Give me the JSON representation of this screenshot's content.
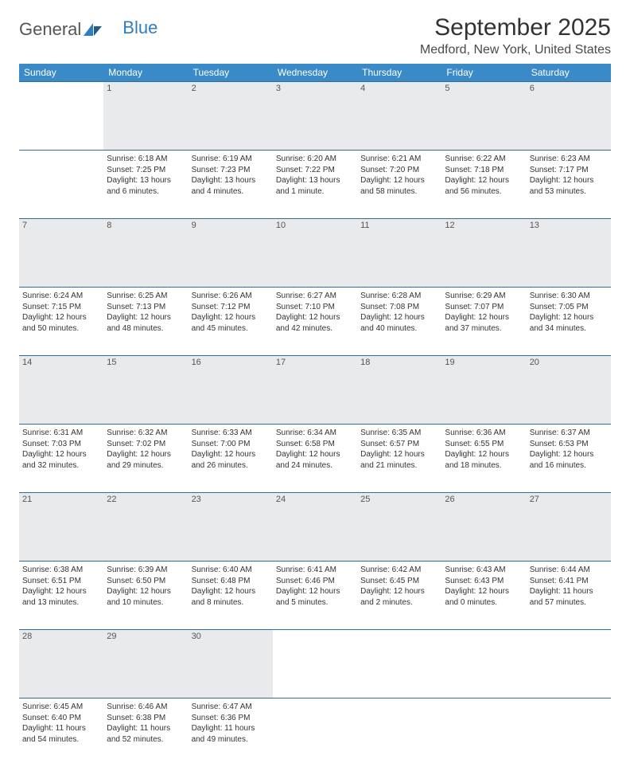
{
  "logo": {
    "text1": "General",
    "text2": "Blue"
  },
  "title": "September 2025",
  "location": "Medford, New York, United States",
  "colors": {
    "header_bg": "#3a8ac8",
    "header_text": "#ffffff",
    "daynum_bg": "#e9eaeb",
    "border": "#2c6ea3",
    "body_text": "#333333",
    "logo_gray": "#555555",
    "logo_blue": "#2f7ec0"
  },
  "typography": {
    "title_fontsize": 30,
    "location_fontsize": 16,
    "header_fontsize": 12,
    "daynum_fontsize": 11,
    "cell_fontsize": 10
  },
  "weekdays": [
    "Sunday",
    "Monday",
    "Tuesday",
    "Wednesday",
    "Thursday",
    "Friday",
    "Saturday"
  ],
  "weeks": [
    {
      "nums": [
        "",
        "1",
        "2",
        "3",
        "4",
        "5",
        "6"
      ],
      "cells": [
        {
          "empty": true
        },
        {
          "sunrise": "Sunrise: 6:18 AM",
          "sunset": "Sunset: 7:25 PM",
          "day1": "Daylight: 13 hours",
          "day2": "and 6 minutes."
        },
        {
          "sunrise": "Sunrise: 6:19 AM",
          "sunset": "Sunset: 7:23 PM",
          "day1": "Daylight: 13 hours",
          "day2": "and 4 minutes."
        },
        {
          "sunrise": "Sunrise: 6:20 AM",
          "sunset": "Sunset: 7:22 PM",
          "day1": "Daylight: 13 hours",
          "day2": "and 1 minute."
        },
        {
          "sunrise": "Sunrise: 6:21 AM",
          "sunset": "Sunset: 7:20 PM",
          "day1": "Daylight: 12 hours",
          "day2": "and 58 minutes."
        },
        {
          "sunrise": "Sunrise: 6:22 AM",
          "sunset": "Sunset: 7:18 PM",
          "day1": "Daylight: 12 hours",
          "day2": "and 56 minutes."
        },
        {
          "sunrise": "Sunrise: 6:23 AM",
          "sunset": "Sunset: 7:17 PM",
          "day1": "Daylight: 12 hours",
          "day2": "and 53 minutes."
        }
      ]
    },
    {
      "nums": [
        "7",
        "8",
        "9",
        "10",
        "11",
        "12",
        "13"
      ],
      "cells": [
        {
          "sunrise": "Sunrise: 6:24 AM",
          "sunset": "Sunset: 7:15 PM",
          "day1": "Daylight: 12 hours",
          "day2": "and 50 minutes."
        },
        {
          "sunrise": "Sunrise: 6:25 AM",
          "sunset": "Sunset: 7:13 PM",
          "day1": "Daylight: 12 hours",
          "day2": "and 48 minutes."
        },
        {
          "sunrise": "Sunrise: 6:26 AM",
          "sunset": "Sunset: 7:12 PM",
          "day1": "Daylight: 12 hours",
          "day2": "and 45 minutes."
        },
        {
          "sunrise": "Sunrise: 6:27 AM",
          "sunset": "Sunset: 7:10 PM",
          "day1": "Daylight: 12 hours",
          "day2": "and 42 minutes."
        },
        {
          "sunrise": "Sunrise: 6:28 AM",
          "sunset": "Sunset: 7:08 PM",
          "day1": "Daylight: 12 hours",
          "day2": "and 40 minutes."
        },
        {
          "sunrise": "Sunrise: 6:29 AM",
          "sunset": "Sunset: 7:07 PM",
          "day1": "Daylight: 12 hours",
          "day2": "and 37 minutes."
        },
        {
          "sunrise": "Sunrise: 6:30 AM",
          "sunset": "Sunset: 7:05 PM",
          "day1": "Daylight: 12 hours",
          "day2": "and 34 minutes."
        }
      ]
    },
    {
      "nums": [
        "14",
        "15",
        "16",
        "17",
        "18",
        "19",
        "20"
      ],
      "cells": [
        {
          "sunrise": "Sunrise: 6:31 AM",
          "sunset": "Sunset: 7:03 PM",
          "day1": "Daylight: 12 hours",
          "day2": "and 32 minutes."
        },
        {
          "sunrise": "Sunrise: 6:32 AM",
          "sunset": "Sunset: 7:02 PM",
          "day1": "Daylight: 12 hours",
          "day2": "and 29 minutes."
        },
        {
          "sunrise": "Sunrise: 6:33 AM",
          "sunset": "Sunset: 7:00 PM",
          "day1": "Daylight: 12 hours",
          "day2": "and 26 minutes."
        },
        {
          "sunrise": "Sunrise: 6:34 AM",
          "sunset": "Sunset: 6:58 PM",
          "day1": "Daylight: 12 hours",
          "day2": "and 24 minutes."
        },
        {
          "sunrise": "Sunrise: 6:35 AM",
          "sunset": "Sunset: 6:57 PM",
          "day1": "Daylight: 12 hours",
          "day2": "and 21 minutes."
        },
        {
          "sunrise": "Sunrise: 6:36 AM",
          "sunset": "Sunset: 6:55 PM",
          "day1": "Daylight: 12 hours",
          "day2": "and 18 minutes."
        },
        {
          "sunrise": "Sunrise: 6:37 AM",
          "sunset": "Sunset: 6:53 PM",
          "day1": "Daylight: 12 hours",
          "day2": "and 16 minutes."
        }
      ]
    },
    {
      "nums": [
        "21",
        "22",
        "23",
        "24",
        "25",
        "26",
        "27"
      ],
      "cells": [
        {
          "sunrise": "Sunrise: 6:38 AM",
          "sunset": "Sunset: 6:51 PM",
          "day1": "Daylight: 12 hours",
          "day2": "and 13 minutes."
        },
        {
          "sunrise": "Sunrise: 6:39 AM",
          "sunset": "Sunset: 6:50 PM",
          "day1": "Daylight: 12 hours",
          "day2": "and 10 minutes."
        },
        {
          "sunrise": "Sunrise: 6:40 AM",
          "sunset": "Sunset: 6:48 PM",
          "day1": "Daylight: 12 hours",
          "day2": "and 8 minutes."
        },
        {
          "sunrise": "Sunrise: 6:41 AM",
          "sunset": "Sunset: 6:46 PM",
          "day1": "Daylight: 12 hours",
          "day2": "and 5 minutes."
        },
        {
          "sunrise": "Sunrise: 6:42 AM",
          "sunset": "Sunset: 6:45 PM",
          "day1": "Daylight: 12 hours",
          "day2": "and 2 minutes."
        },
        {
          "sunrise": "Sunrise: 6:43 AM",
          "sunset": "Sunset: 6:43 PM",
          "day1": "Daylight: 12 hours",
          "day2": "and 0 minutes."
        },
        {
          "sunrise": "Sunrise: 6:44 AM",
          "sunset": "Sunset: 6:41 PM",
          "day1": "Daylight: 11 hours",
          "day2": "and 57 minutes."
        }
      ]
    },
    {
      "nums": [
        "28",
        "29",
        "30",
        "",
        "",
        "",
        ""
      ],
      "cells": [
        {
          "sunrise": "Sunrise: 6:45 AM",
          "sunset": "Sunset: 6:40 PM",
          "day1": "Daylight: 11 hours",
          "day2": "and 54 minutes."
        },
        {
          "sunrise": "Sunrise: 6:46 AM",
          "sunset": "Sunset: 6:38 PM",
          "day1": "Daylight: 11 hours",
          "day2": "and 52 minutes."
        },
        {
          "sunrise": "Sunrise: 6:47 AM",
          "sunset": "Sunset: 6:36 PM",
          "day1": "Daylight: 11 hours",
          "day2": "and 49 minutes."
        },
        {
          "empty": true
        },
        {
          "empty": true
        },
        {
          "empty": true
        },
        {
          "empty": true
        }
      ]
    }
  ]
}
